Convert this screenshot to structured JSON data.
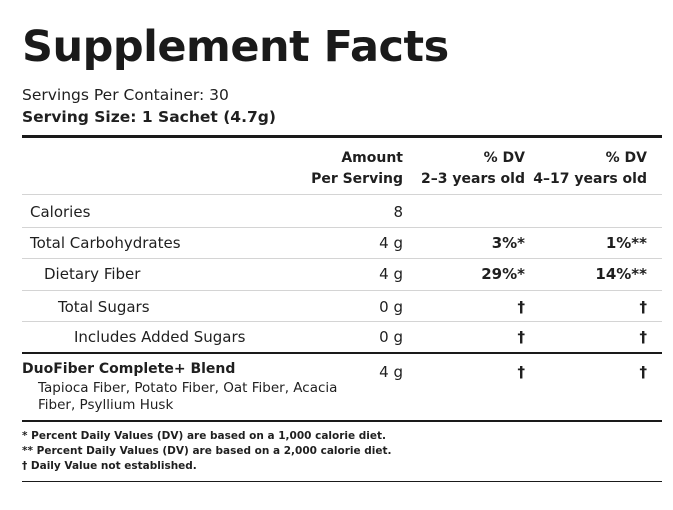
{
  "title": "Supplement Facts",
  "servings_per_container": "Servings Per Container: 30",
  "serving_size": "Serving Size: 1 Sachet (4.7g)",
  "headers": {
    "amount_line1": "Amount",
    "amount_line2": "Per Serving",
    "dv1_line1": "% DV",
    "dv1_line2": "2–3 years old",
    "dv2_line1": "% DV",
    "dv2_line2": "4–17 years old"
  },
  "rows": [
    {
      "label": "Calories",
      "amount": "8",
      "dv1": "",
      "dv2": ""
    },
    {
      "label": "Total Carbohydrates",
      "amount": "4 g",
      "dv1": "3%*",
      "dv2": "1%**"
    },
    {
      "label": "Dietary Fiber",
      "amount": "4 g",
      "dv1": "29%*",
      "dv2": "14%**"
    },
    {
      "label": "Total Sugars",
      "amount": "0 g",
      "dv1": "†",
      "dv2": "†"
    },
    {
      "label": "Includes Added Sugars",
      "amount": "0 g",
      "dv1": "†",
      "dv2": "†"
    }
  ],
  "blend": {
    "name": "DuoFiber Complete+ Blend",
    "ingredients": "Tapioca Fiber, Potato Fiber, Oat Fiber, Acacia Fiber, Psyllium Husk",
    "amount": "4 g",
    "dv1": "†",
    "dv2": "†"
  },
  "footnotes": [
    "* Percent Daily Values (DV) are based on a 1,000 calorie diet.",
    "** Percent Daily Values (DV) are based on a 2,000 calorie diet.",
    "† Daily Value not established."
  ]
}
